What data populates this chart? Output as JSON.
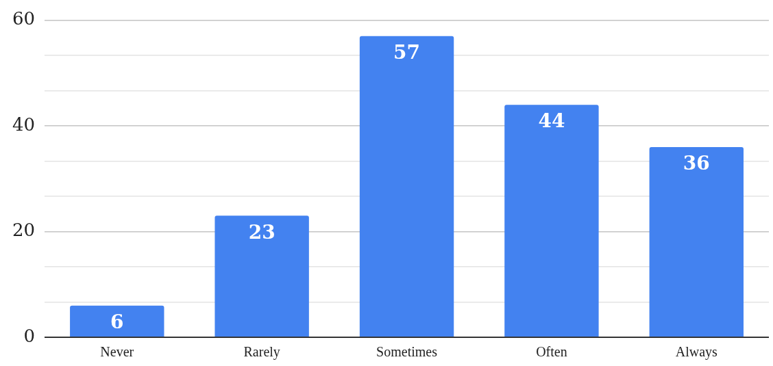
{
  "chart_data": {
    "type": "bar",
    "categories": [
      "Never",
      "Rarely",
      "Sometimes",
      "Often",
      "Always"
    ],
    "values": [
      6,
      23,
      57,
      44,
      36
    ],
    "color": "#4382f0",
    "ylim": [
      0,
      60
    ],
    "yticks": [
      0,
      {
        "value": 6.67,
        "label": null
      },
      {
        "value": 13.33,
        "label": null
      },
      20,
      {
        "value": 26.67,
        "label": null
      },
      {
        "value": 33.33,
        "label": null
      },
      40,
      {
        "value": 46.67,
        "label": null
      },
      {
        "value": 53.33,
        "label": null
      },
      60
    ],
    "grid": "y",
    "data_labels": true,
    "legend": false
  }
}
